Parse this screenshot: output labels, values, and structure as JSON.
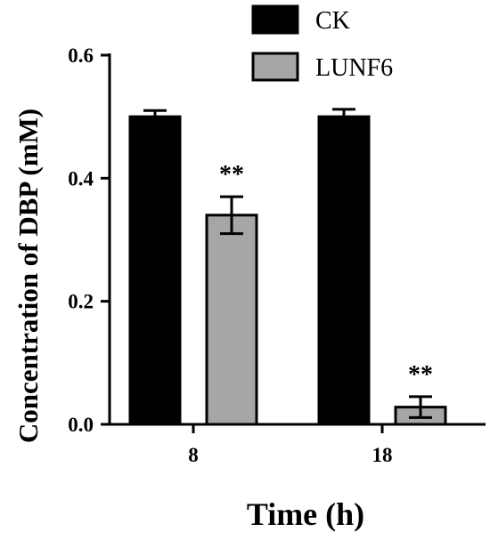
{
  "chart_data": {
    "type": "bar",
    "title": "",
    "xlabel": "Time (h)",
    "ylabel": "Concentration of DBP (mM)",
    "categories": [
      "8",
      "18"
    ],
    "ylim": [
      0,
      0.6
    ],
    "yticks": [
      0.0,
      0.2,
      0.4,
      0.6
    ],
    "ytick_labels": [
      "0.0",
      "0.2",
      "0.4",
      "0.6"
    ],
    "grid": false,
    "legend_position": "top-right",
    "series": [
      {
        "name": "CK",
        "color": "#000000",
        "values": [
          0.5,
          0.5
        ],
        "errors": [
          0.01,
          0.012
        ],
        "annotations": [
          "",
          ""
        ]
      },
      {
        "name": "LUNF6",
        "color": "#a6a6a6",
        "values": [
          0.34,
          0.028
        ],
        "errors": [
          0.03,
          0.017
        ],
        "annotations": [
          "**",
          "**"
        ]
      }
    ]
  }
}
